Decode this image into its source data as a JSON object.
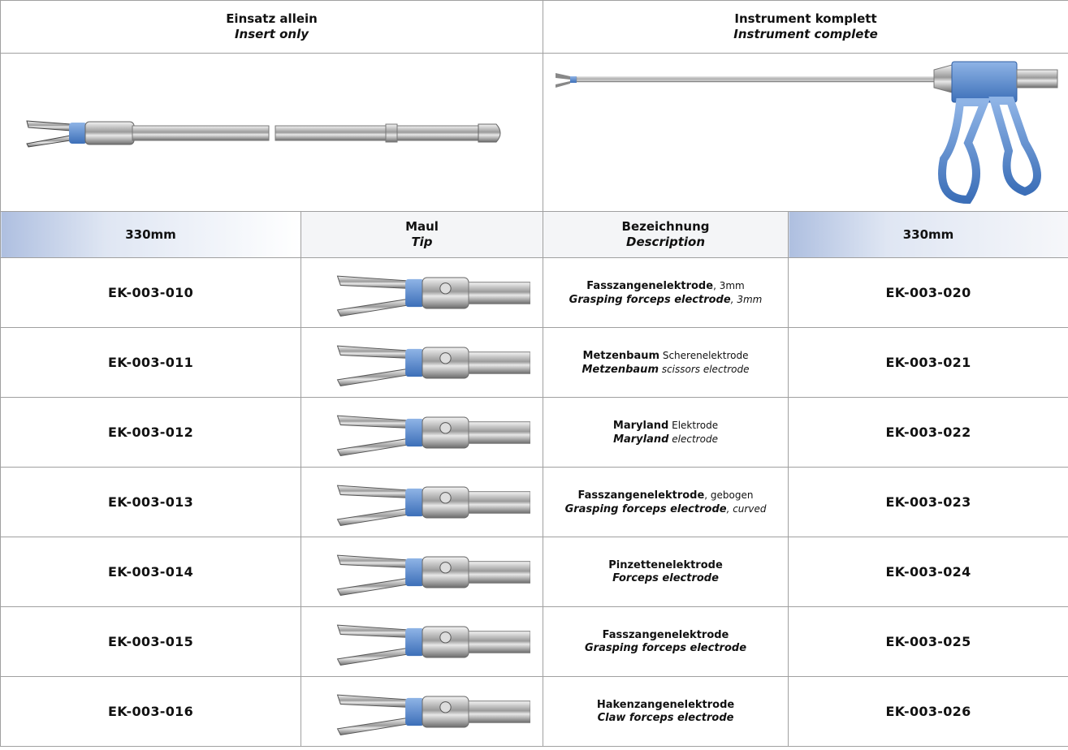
{
  "header": {
    "insert_de": "Einsatz allein",
    "insert_en": "Insert only",
    "complete_de": "Instrument komplett",
    "complete_en": "Instrument complete"
  },
  "subheader": {
    "length_insert": "330mm",
    "tip_de": "Maul",
    "tip_en": "Tip",
    "desc_de": "Bezeichnung",
    "desc_en": "Description",
    "length_complete": "330mm"
  },
  "table": {
    "rows": [
      {
        "insert": "EK-003-010",
        "de": [
          "Fasszangenelektrode",
          ", 3mm"
        ],
        "en": [
          "Grasping forceps electrode",
          ", 3mm"
        ],
        "complete": "EK-003-020"
      },
      {
        "insert": "EK-003-011",
        "de": [
          "Metzenbaum",
          " Scherenelektrode"
        ],
        "en": [
          "Metzenbaum",
          " scissors electrode"
        ],
        "complete": "EK-003-021"
      },
      {
        "insert": "EK-003-012",
        "de": [
          "Maryland",
          " Elektrode"
        ],
        "en": [
          "Maryland",
          " electrode"
        ],
        "complete": "EK-003-022"
      },
      {
        "insert": "EK-003-013",
        "de": [
          "Fasszangenelektrode",
          ", gebogen"
        ],
        "en": [
          "Grasping forceps electrode",
          ", curved"
        ],
        "complete": "EK-003-023"
      },
      {
        "insert": "EK-003-014",
        "de": [
          "Pinzettenelektrode"
        ],
        "en": [
          "Forceps electrode"
        ],
        "complete": "EK-003-024"
      },
      {
        "insert": "EK-003-015",
        "de": [
          "Fasszangenelektrode"
        ],
        "en": [
          "Grasping forceps electrode"
        ],
        "complete": "EK-003-025"
      },
      {
        "insert": "EK-003-016",
        "de": [
          "Hakenzangenelektrode"
        ],
        "en": [
          "Claw forceps electrode"
        ],
        "complete": "EK-003-026"
      }
    ]
  }
}
